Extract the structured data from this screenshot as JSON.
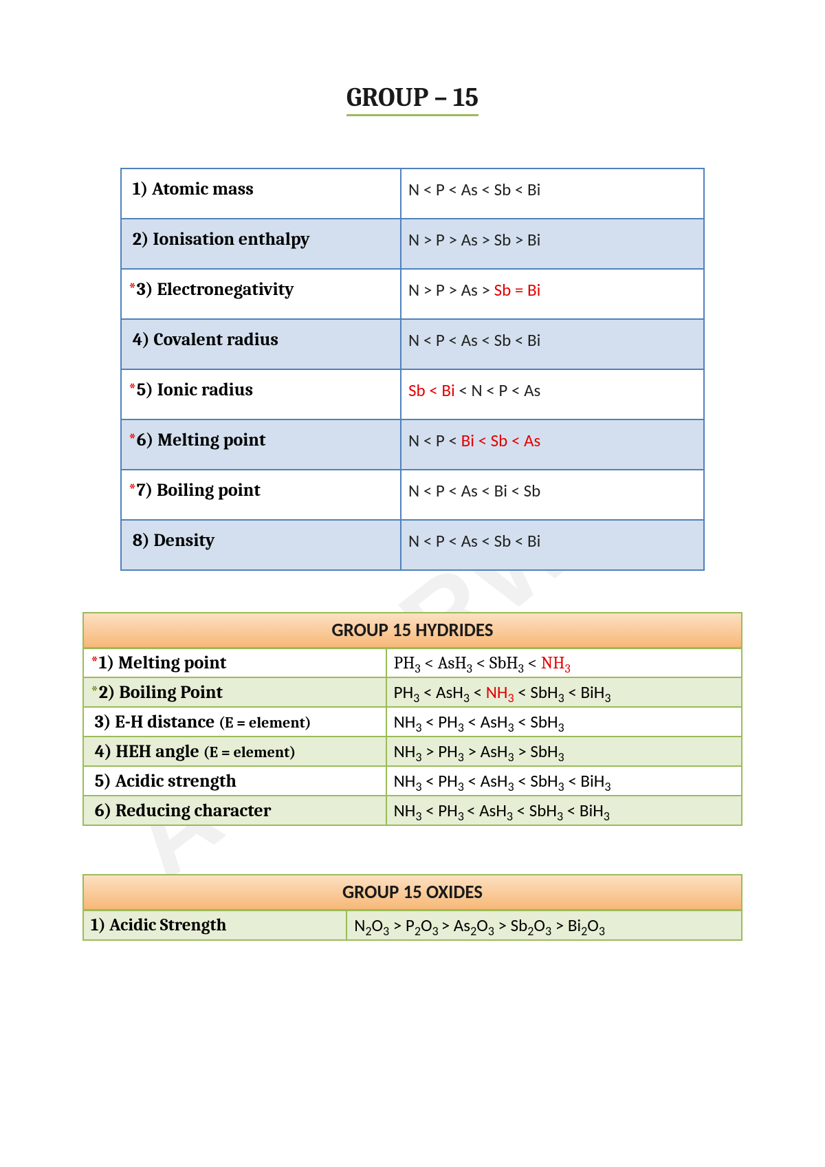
{
  "title": "GROUP – 15",
  "watermark": "AGGARWAL",
  "table1": {
    "rows": [
      {
        "n": "1",
        "star": false,
        "label": "Atomic mass",
        "value_parts": [
          {
            "t": "N < P < As < Sb < Bi"
          }
        ]
      },
      {
        "n": "2",
        "star": false,
        "label": "Ionisation enthalpy",
        "value_parts": [
          {
            "t": "N > P > As > Sb > Bi"
          }
        ]
      },
      {
        "n": "3",
        "star": true,
        "label": "Electronegativity",
        "value_parts": [
          {
            "t": "N > P > As > "
          },
          {
            "t": "Sb = Bi",
            "red": true
          }
        ]
      },
      {
        "n": "4",
        "star": false,
        "label": "Covalent radius",
        "value_parts": [
          {
            "t": "N < P < As < Sb < Bi"
          }
        ]
      },
      {
        "n": "5",
        "star": true,
        "label": "Ionic radius",
        "value_parts": [
          {
            "t": "Sb < Bi",
            "red": true
          },
          {
            "t": " < N < P < As"
          }
        ]
      },
      {
        "n": "6",
        "star": true,
        "label": "Melting point",
        "value_parts": [
          {
            "t": "N < P < "
          },
          {
            "t": "Bi < Sb < As",
            "red": true
          }
        ]
      },
      {
        "n": "7",
        "star": true,
        "label": "Boiling point",
        "value_parts": [
          {
            "t": "N < P < As < Bi < Sb"
          }
        ]
      },
      {
        "n": "8",
        "star": false,
        "label": "Density",
        "value_parts": [
          {
            "t": "N < P < As < Sb < Bi"
          }
        ]
      }
    ],
    "colors": {
      "border": "#4f81bd",
      "alt": "#d3dfee",
      "star": "#e30000"
    }
  },
  "table2": {
    "header": "GROUP 15 HYDRIDES",
    "rows": [
      {
        "n": "1",
        "star": "red",
        "label": "Melting point",
        "sublabel": "",
        "value_html": "PH<sub>3</sub> < AsH<sub>3</sub> < SbH<sub>3</sub> < <span class='red'>NH<sub>3</sub></span>",
        "value_serif": true
      },
      {
        "n": "2",
        "star": "green",
        "label": "Boiling Point",
        "sublabel": "",
        "value_html": "PH<sub>3</sub> < AsH<sub>3</sub> < <span class='red'>NH<sub>3</sub></span> < SbH<sub>3</sub> < BiH<sub>3</sub>"
      },
      {
        "n": "3",
        "star": "",
        "label": "E-H distance ",
        "sublabel": "(E = element)",
        "value_html": "NH<sub>3</sub> < PH<sub>3</sub> < AsH<sub>3</sub> < SbH<sub>3</sub>"
      },
      {
        "n": "4",
        "star": "",
        "label": "HEH angle ",
        "sublabel": "(E = element)",
        "value_html": "NH<sub>3</sub> > PH<sub>3</sub> > AsH<sub>3</sub> > SbH<sub>3</sub>"
      },
      {
        "n": "5",
        "star": "",
        "label": "Acidic strength",
        "sublabel": "",
        "value_html": "NH<sub>3</sub> < PH<sub>3</sub> < AsH<sub>3</sub> < SbH<sub>3</sub> < BiH<sub>3</sub>"
      },
      {
        "n": "6",
        "star": "",
        "label": "Reducing character",
        "sublabel": "",
        "value_html": "NH<sub>3</sub> < PH<sub>3 </sub>< AsH<sub>3</sub> < SbH<sub>3</sub> < BiH<sub>3</sub>"
      }
    ],
    "colors": {
      "border": "#9bbb59",
      "alt": "#e6eed5",
      "header_grad": [
        "#fde0c2",
        "#f6b877"
      ]
    }
  },
  "table3": {
    "header": "GROUP 15 OXIDES",
    "row": {
      "label": "1) Acidic  Strength",
      "value_html": "N<sub>2</sub>O<sub>3</sub>  > P<sub>2</sub>O<sub>3 </sub>> As<sub>2</sub>O<sub>3</sub> > Sb<sub>2</sub>O<sub>3</sub> > Bi<sub>2</sub>O<sub>3</sub>"
    }
  }
}
